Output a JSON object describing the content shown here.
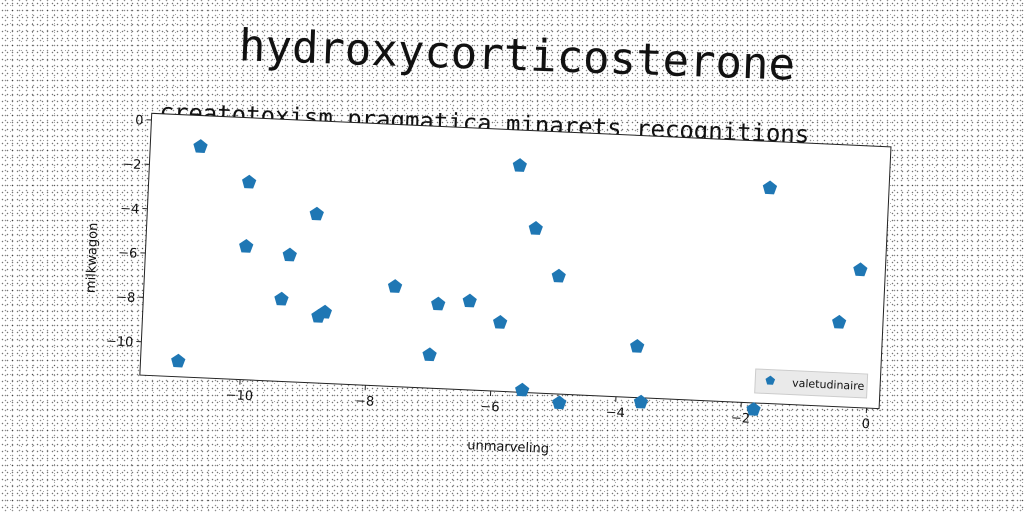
{
  "chart_data": {
    "type": "scatter",
    "title": "hydroxycorticosterone",
    "subtitle": "creatotoxism pragmatica minarets recognitions",
    "xlabel": "unmarveling",
    "ylabel": "milkwagon",
    "xlim": [
      -11.6,
      0.2
    ],
    "ylim": [
      -11.5,
      0.3
    ],
    "xticks": [
      -10,
      -8,
      -6,
      -4,
      -2,
      0
    ],
    "yticks": [
      0,
      -2,
      -4,
      -6,
      -8,
      -10
    ],
    "xtick_labels": [
      "−10",
      "−8",
      "−6",
      "−4",
      "−2",
      "0"
    ],
    "ytick_labels": [
      "0",
      "−2",
      "−4",
      "−6",
      "−8",
      "−10"
    ],
    "legend_position": "lower-right",
    "grid": false,
    "color": "#1f77b4",
    "marker": "pentagon",
    "series": [
      {
        "name": "valetudinaire",
        "points": [
          [
            -10.8,
            -1.1
          ],
          [
            -10.0,
            -2.6
          ],
          [
            -10.0,
            -5.5
          ],
          [
            -11.0,
            -10.8
          ],
          [
            -8.9,
            -3.9
          ],
          [
            -9.3,
            -5.8
          ],
          [
            -9.4,
            -7.8
          ],
          [
            -8.7,
            -8.3
          ],
          [
            -8.8,
            -8.5
          ],
          [
            -7.6,
            -7.0
          ],
          [
            -7.0,
            -10.0
          ],
          [
            -6.9,
            -7.7
          ],
          [
            -6.4,
            -7.5
          ],
          [
            -5.9,
            -8.4
          ],
          [
            -5.7,
            -1.3
          ],
          [
            -5.4,
            -4.1
          ],
          [
            -5.0,
            -6.2
          ],
          [
            -5.5,
            -11.4
          ],
          [
            -4.9,
            -11.9
          ],
          [
            -3.7,
            -9.2
          ],
          [
            -3.6,
            -11.7
          ],
          [
            -1.7,
            -1.8
          ],
          [
            -1.8,
            -11.8
          ],
          [
            -0.5,
            -7.7
          ],
          [
            -0.2,
            -5.3
          ]
        ]
      }
    ]
  }
}
